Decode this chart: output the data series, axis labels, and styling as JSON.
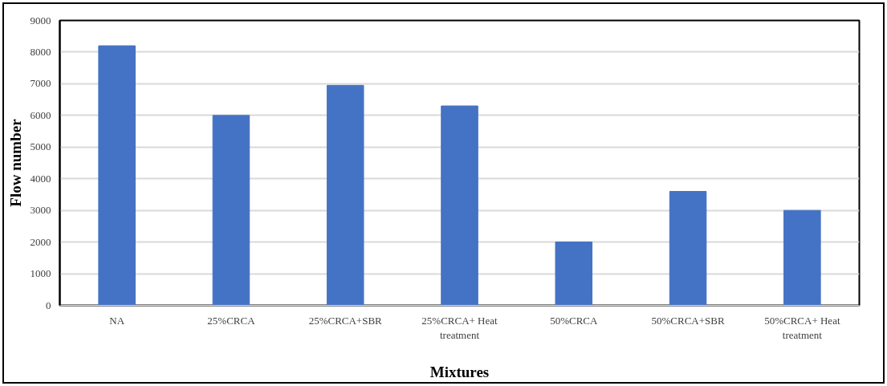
{
  "chart_data": {
    "type": "bar",
    "xlabel": "Mixtures",
    "ylabel": "Flow number",
    "categories": [
      "NA",
      "25%CRCA",
      "25%CRCA+SBR",
      "25%CRCA+ Heat treatment",
      "50%CRCA",
      "50%CRCA+SBR",
      "50%CRCA+ Heat treatment"
    ],
    "values": [
      8200,
      6000,
      6950,
      6300,
      2000,
      3600,
      3000
    ],
    "color": "#4472c4",
    "ylim": [
      0,
      9000
    ],
    "yticks": [
      0,
      1000,
      2000,
      3000,
      4000,
      5000,
      6000,
      7000,
      8000,
      9000
    ],
    "grid": "y"
  }
}
